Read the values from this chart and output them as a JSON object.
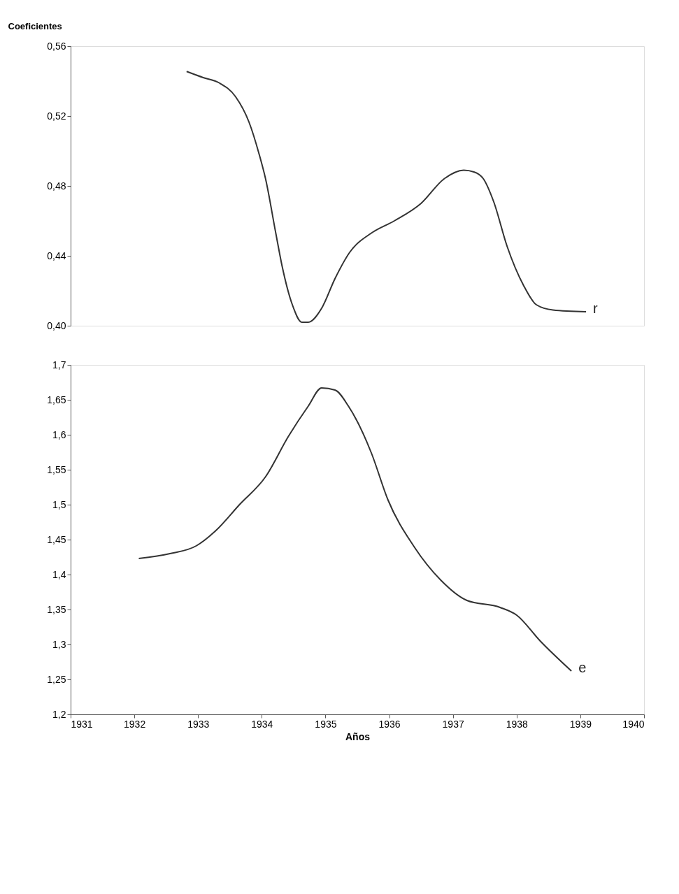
{
  "chart_data": [
    {
      "type": "line",
      "ylabel": "Coeficientes",
      "xlim": [
        1931,
        1940
      ],
      "ylim": [
        0.4,
        0.56
      ],
      "yticks": [
        {
          "value": 0.4,
          "label": "0,40"
        },
        {
          "value": 0.44,
          "label": "0,44"
        },
        {
          "value": 0.48,
          "label": "0,48"
        },
        {
          "value": 0.52,
          "label": "0,52"
        },
        {
          "value": 0.56,
          "label": "0,56"
        }
      ],
      "tick_labels": "y",
      "grid": false,
      "marker": "none",
      "line_style": "solid",
      "series": [
        {
          "color": "#333333",
          "x": [
            1932.82,
            1933.08,
            1933.33,
            1933.59,
            1933.8,
            1933.96,
            1934.06,
            1934.22,
            1934.32,
            1934.48,
            1934.63,
            1934.73,
            1934.94,
            1935.15,
            1935.38,
            1935.72,
            1936.08,
            1936.5,
            1936.86,
            1937.17,
            1937.33,
            1937.48,
            1937.64,
            1937.85,
            1938.11,
            1938.31,
            1938.57,
            1939.09
          ],
          "values": [
            0.5455,
            0.542,
            0.539,
            0.531,
            0.5165,
            0.498,
            0.484,
            0.453,
            0.434,
            0.412,
            0.402,
            0.402,
            0.41,
            0.427,
            0.442,
            0.453,
            0.46,
            0.47,
            0.484,
            0.489,
            0.488,
            0.484,
            0.471,
            0.4455,
            0.423,
            0.412,
            0.409,
            0.408
          ]
        }
      ],
      "annotations": [
        {
          "text": "r",
          "x": 1939.09,
          "y": 0.408
        }
      ]
    },
    {
      "type": "line",
      "xlabel": "Años",
      "xlim": [
        1931,
        1940
      ],
      "xticks": [
        1931,
        1932,
        1933,
        1934,
        1935,
        1936,
        1937,
        1938,
        1939,
        1940
      ],
      "ylim": [
        1.2,
        1.7
      ],
      "yticks": [
        {
          "value": 1.2,
          "label": "1,2"
        },
        {
          "value": 1.25,
          "label": "1,25"
        },
        {
          "value": 1.3,
          "label": "1,3"
        },
        {
          "value": 1.35,
          "label": "1,35"
        },
        {
          "value": 1.4,
          "label": "1,4"
        },
        {
          "value": 1.45,
          "label": "1,45"
        },
        {
          "value": 1.5,
          "label": "1,5"
        },
        {
          "value": 1.55,
          "label": "1,55"
        },
        {
          "value": 1.6,
          "label": "1,6"
        },
        {
          "value": 1.65,
          "label": "1,65"
        },
        {
          "value": 1.7,
          "label": "1,7"
        }
      ],
      "grid": false,
      "marker": "none",
      "line_style": "solid",
      "series": [
        {
          "color": "#333333",
          "x": [
            1932.07,
            1932.56,
            1932.97,
            1933.28,
            1933.65,
            1934.06,
            1934.42,
            1934.73,
            1934.94,
            1935.15,
            1935.36,
            1935.72,
            1935.98,
            1936.39,
            1936.81,
            1937.22,
            1937.74,
            1938.0,
            1938.37,
            1938.86
          ],
          "values": [
            1.423,
            1.43,
            1.441,
            1.463,
            1.5,
            1.54,
            1.598,
            1.641,
            1.667,
            1.664,
            1.641,
            1.574,
            1.507,
            1.44,
            1.392,
            1.363,
            1.353,
            1.342,
            1.305,
            1.262
          ]
        }
      ],
      "annotations": [
        {
          "text": "e",
          "x": 1938.86,
          "y": 1.262
        }
      ]
    }
  ]
}
